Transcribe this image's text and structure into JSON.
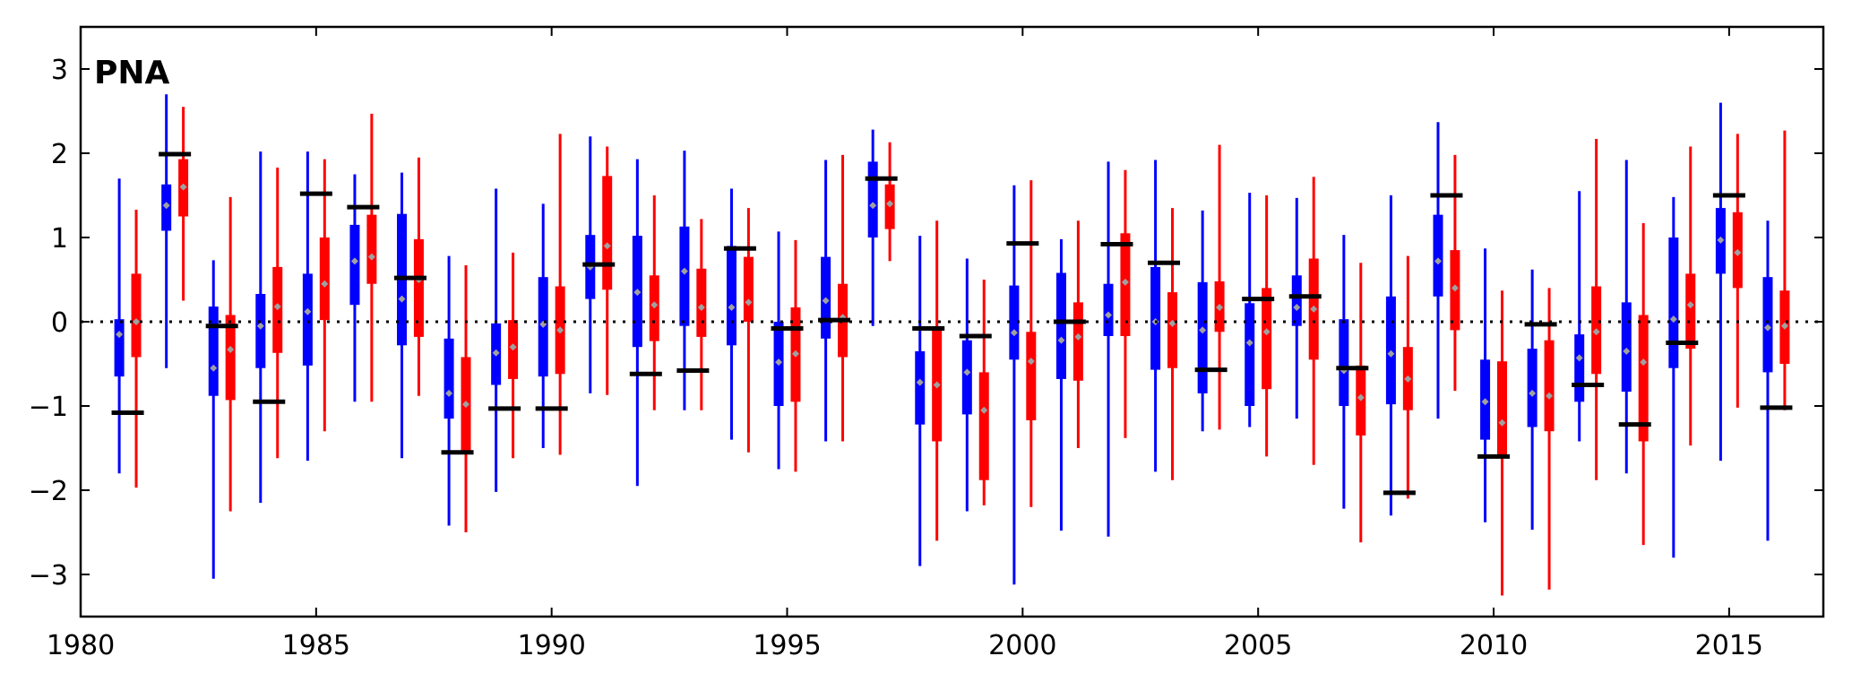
{
  "chart_data": {
    "type": "box",
    "panel_label": "PNA",
    "xlim": [
      1980,
      2017
    ],
    "ylim": [
      -3.5,
      3.5
    ],
    "x_ticks": [
      1980,
      1985,
      1990,
      1995,
      2000,
      2005,
      2010,
      2015
    ],
    "y_ticks": [
      -3,
      -2,
      -1,
      0,
      1,
      2,
      3
    ],
    "zero_line": 0,
    "grid": false,
    "colors": {
      "series_a": "#0000ff",
      "series_b": "#ff0000",
      "observed": "#000000",
      "mean_marker": "#a0a0a0"
    },
    "series": [
      {
        "color": "#0000ff",
        "offset": -0.18,
        "boxes": [
          {
            "year": 1981,
            "lo": -1.8,
            "q1": -0.65,
            "q3": 0.03,
            "hi": 1.7,
            "mean": -0.15
          },
          {
            "year": 1982,
            "lo": -0.55,
            "q1": 1.08,
            "q3": 1.63,
            "hi": 2.7,
            "mean": 1.38
          },
          {
            "year": 1983,
            "lo": -3.05,
            "q1": -0.88,
            "q3": 0.18,
            "hi": 0.73,
            "mean": -0.55
          },
          {
            "year": 1984,
            "lo": -2.15,
            "q1": -0.55,
            "q3": 0.33,
            "hi": 2.02,
            "mean": -0.05
          },
          {
            "year": 1985,
            "lo": -1.65,
            "q1": -0.52,
            "q3": 0.57,
            "hi": 2.02,
            "mean": 0.12
          },
          {
            "year": 1986,
            "lo": -0.95,
            "q1": 0.2,
            "q3": 1.15,
            "hi": 1.75,
            "mean": 0.72
          },
          {
            "year": 1987,
            "lo": -1.62,
            "q1": -0.28,
            "q3": 1.28,
            "hi": 1.77,
            "mean": 0.27
          },
          {
            "year": 1988,
            "lo": -2.42,
            "q1": -1.15,
            "q3": -0.2,
            "hi": 0.78,
            "mean": -0.85
          },
          {
            "year": 1989,
            "lo": -2.02,
            "q1": -0.75,
            "q3": -0.02,
            "hi": 1.58,
            "mean": -0.37
          },
          {
            "year": 1990,
            "lo": -1.5,
            "q1": -0.65,
            "q3": 0.53,
            "hi": 1.4,
            "mean": -0.03
          },
          {
            "year": 1991,
            "lo": -0.85,
            "q1": 0.27,
            "q3": 1.03,
            "hi": 2.2,
            "mean": 0.65
          },
          {
            "year": 1992,
            "lo": -1.95,
            "q1": -0.3,
            "q3": 1.02,
            "hi": 1.93,
            "mean": 0.35
          },
          {
            "year": 1993,
            "lo": -1.05,
            "q1": -0.05,
            "q3": 1.13,
            "hi": 2.03,
            "mean": 0.6
          },
          {
            "year": 1994,
            "lo": -1.4,
            "q1": -0.28,
            "q3": 0.9,
            "hi": 1.58,
            "mean": 0.17
          },
          {
            "year": 1995,
            "lo": -1.75,
            "q1": -1.0,
            "q3": 0.0,
            "hi": 1.07,
            "mean": -0.48
          },
          {
            "year": 1996,
            "lo": -1.42,
            "q1": -0.2,
            "q3": 0.77,
            "hi": 1.92,
            "mean": 0.25
          },
          {
            "year": 1997,
            "lo": -0.05,
            "q1": 1.0,
            "q3": 1.9,
            "hi": 2.28,
            "mean": 1.38
          },
          {
            "year": 1998,
            "lo": -2.9,
            "q1": -1.22,
            "q3": -0.35,
            "hi": 1.02,
            "mean": -0.72
          },
          {
            "year": 1999,
            "lo": -2.25,
            "q1": -1.1,
            "q3": -0.22,
            "hi": 0.75,
            "mean": -0.6
          },
          {
            "year": 2000,
            "lo": -3.12,
            "q1": -0.45,
            "q3": 0.43,
            "hi": 1.62,
            "mean": -0.13
          },
          {
            "year": 2001,
            "lo": -2.48,
            "q1": -0.68,
            "q3": 0.58,
            "hi": 0.98,
            "mean": -0.22
          },
          {
            "year": 2002,
            "lo": -2.55,
            "q1": -0.17,
            "q3": 0.45,
            "hi": 1.9,
            "mean": 0.08
          },
          {
            "year": 2003,
            "lo": -1.78,
            "q1": -0.57,
            "q3": 0.65,
            "hi": 1.92,
            "mean": 0.0
          },
          {
            "year": 2004,
            "lo": -1.3,
            "q1": -0.85,
            "q3": 0.47,
            "hi": 1.32,
            "mean": -0.1
          },
          {
            "year": 2005,
            "lo": -1.25,
            "q1": -1.0,
            "q3": 0.22,
            "hi": 1.53,
            "mean": -0.25
          },
          {
            "year": 2006,
            "lo": -1.15,
            "q1": -0.05,
            "q3": 0.55,
            "hi": 1.47,
            "mean": 0.17
          },
          {
            "year": 2007,
            "lo": -2.22,
            "q1": -1.0,
            "q3": 0.03,
            "hi": 1.03,
            "mean": -0.58
          },
          {
            "year": 2008,
            "lo": -2.3,
            "q1": -0.98,
            "q3": 0.3,
            "hi": 1.5,
            "mean": -0.38
          },
          {
            "year": 2009,
            "lo": -1.15,
            "q1": 0.3,
            "q3": 1.27,
            "hi": 2.37,
            "mean": 0.72
          },
          {
            "year": 2010,
            "lo": -2.38,
            "q1": -1.4,
            "q3": -0.45,
            "hi": 0.87,
            "mean": -0.95
          },
          {
            "year": 2011,
            "lo": -2.47,
            "q1": -1.25,
            "q3": -0.32,
            "hi": 0.62,
            "mean": -0.85
          },
          {
            "year": 2012,
            "lo": -1.42,
            "q1": -0.95,
            "q3": -0.15,
            "hi": 1.55,
            "mean": -0.43
          },
          {
            "year": 2013,
            "lo": -1.8,
            "q1": -0.83,
            "q3": 0.23,
            "hi": 1.92,
            "mean": -0.35
          },
          {
            "year": 2014,
            "lo": -2.8,
            "q1": -0.55,
            "q3": 1.0,
            "hi": 1.48,
            "mean": 0.03
          },
          {
            "year": 2015,
            "lo": -1.65,
            "q1": 0.57,
            "q3": 1.35,
            "hi": 2.6,
            "mean": 0.97
          },
          {
            "year": 2016,
            "lo": -2.6,
            "q1": -0.6,
            "q3": 0.53,
            "hi": 1.2,
            "mean": -0.07
          }
        ]
      },
      {
        "color": "#ff0000",
        "offset": 0.18,
        "boxes": [
          {
            "year": 1981,
            "lo": -1.97,
            "q1": -0.42,
            "q3": 0.57,
            "hi": 1.33,
            "mean": 0.0
          },
          {
            "year": 1982,
            "lo": 0.25,
            "q1": 1.25,
            "q3": 1.93,
            "hi": 2.55,
            "mean": 1.6
          },
          {
            "year": 1983,
            "lo": -2.25,
            "q1": -0.93,
            "q3": 0.08,
            "hi": 1.48,
            "mean": -0.33
          },
          {
            "year": 1984,
            "lo": -1.62,
            "q1": -0.37,
            "q3": 0.65,
            "hi": 1.83,
            "mean": 0.18
          },
          {
            "year": 1985,
            "lo": -1.3,
            "q1": 0.02,
            "q3": 1.0,
            "hi": 1.93,
            "mean": 0.45
          },
          {
            "year": 1986,
            "lo": -0.95,
            "q1": 0.45,
            "q3": 1.27,
            "hi": 2.47,
            "mean": 0.77
          },
          {
            "year": 1987,
            "lo": -0.88,
            "q1": -0.18,
            "q3": 0.98,
            "hi": 1.95,
            "mean": 0.5
          },
          {
            "year": 1988,
            "lo": -2.5,
            "q1": -1.53,
            "q3": -0.42,
            "hi": 0.67,
            "mean": -0.98
          },
          {
            "year": 1989,
            "lo": -1.62,
            "q1": -0.68,
            "q3": 0.02,
            "hi": 0.82,
            "mean": -0.3
          },
          {
            "year": 1990,
            "lo": -1.58,
            "q1": -0.62,
            "q3": 0.42,
            "hi": 2.23,
            "mean": -0.1
          },
          {
            "year": 1991,
            "lo": -0.87,
            "q1": 0.38,
            "q3": 1.73,
            "hi": 2.08,
            "mean": 0.9
          },
          {
            "year": 1992,
            "lo": -1.05,
            "q1": -0.23,
            "q3": 0.55,
            "hi": 1.5,
            "mean": 0.2
          },
          {
            "year": 1993,
            "lo": -1.05,
            "q1": -0.18,
            "q3": 0.63,
            "hi": 1.22,
            "mean": 0.17
          },
          {
            "year": 1994,
            "lo": -1.55,
            "q1": 0.0,
            "q3": 0.77,
            "hi": 1.35,
            "mean": 0.23
          },
          {
            "year": 1995,
            "lo": -1.78,
            "q1": -0.95,
            "q3": 0.17,
            "hi": 0.97,
            "mean": -0.38
          },
          {
            "year": 1996,
            "lo": -1.42,
            "q1": -0.42,
            "q3": 0.45,
            "hi": 1.98,
            "mean": 0.05
          },
          {
            "year": 1997,
            "lo": 0.72,
            "q1": 1.1,
            "q3": 1.63,
            "hi": 2.13,
            "mean": 1.4
          },
          {
            "year": 1998,
            "lo": -2.6,
            "q1": -1.42,
            "q3": -0.1,
            "hi": 1.2,
            "mean": -0.75
          },
          {
            "year": 1999,
            "lo": -2.18,
            "q1": -1.88,
            "q3": -0.6,
            "hi": 0.5,
            "mean": -1.05
          },
          {
            "year": 2000,
            "lo": -2.2,
            "q1": -1.17,
            "q3": -0.12,
            "hi": 1.68,
            "mean": -0.47
          },
          {
            "year": 2001,
            "lo": -1.5,
            "q1": -0.7,
            "q3": 0.23,
            "hi": 1.2,
            "mean": -0.18
          },
          {
            "year": 2002,
            "lo": -1.38,
            "q1": -0.17,
            "q3": 1.05,
            "hi": 1.8,
            "mean": 0.47
          },
          {
            "year": 2003,
            "lo": -1.88,
            "q1": -0.55,
            "q3": 0.35,
            "hi": 1.35,
            "mean": -0.02
          },
          {
            "year": 2004,
            "lo": -1.28,
            "q1": -0.12,
            "q3": 0.48,
            "hi": 2.1,
            "mean": 0.17
          },
          {
            "year": 2005,
            "lo": -1.6,
            "q1": -0.8,
            "q3": 0.4,
            "hi": 1.5,
            "mean": -0.12
          },
          {
            "year": 2006,
            "lo": -1.7,
            "q1": -0.45,
            "q3": 0.75,
            "hi": 1.72,
            "mean": 0.15
          },
          {
            "year": 2007,
            "lo": -2.62,
            "q1": -1.35,
            "q3": -0.52,
            "hi": 0.7,
            "mean": -0.9
          },
          {
            "year": 2008,
            "lo": -2.1,
            "q1": -1.05,
            "q3": -0.3,
            "hi": 0.78,
            "mean": -0.68
          },
          {
            "year": 2009,
            "lo": -0.82,
            "q1": -0.1,
            "q3": 0.85,
            "hi": 1.98,
            "mean": 0.4
          },
          {
            "year": 2010,
            "lo": -3.25,
            "q1": -1.58,
            "q3": -0.47,
            "hi": 0.37,
            "mean": -1.2
          },
          {
            "year": 2011,
            "lo": -3.18,
            "q1": -1.3,
            "q3": -0.22,
            "hi": 0.4,
            "mean": -0.88
          },
          {
            "year": 2012,
            "lo": -1.88,
            "q1": -0.62,
            "q3": 0.42,
            "hi": 2.17,
            "mean": -0.12
          },
          {
            "year": 2013,
            "lo": -2.65,
            "q1": -1.42,
            "q3": 0.08,
            "hi": 1.17,
            "mean": -0.48
          },
          {
            "year": 2014,
            "lo": -1.47,
            "q1": -0.32,
            "q3": 0.57,
            "hi": 2.08,
            "mean": 0.2
          },
          {
            "year": 2015,
            "lo": -1.02,
            "q1": 0.4,
            "q3": 1.3,
            "hi": 2.23,
            "mean": 0.82
          },
          {
            "year": 2016,
            "lo": -1.05,
            "q1": -0.5,
            "q3": 0.37,
            "hi": 2.27,
            "mean": -0.05
          }
        ]
      }
    ],
    "observed": [
      {
        "year": 1981,
        "value": -1.08
      },
      {
        "year": 1982,
        "value": 1.99
      },
      {
        "year": 1983,
        "value": -0.05
      },
      {
        "year": 1984,
        "value": -0.95
      },
      {
        "year": 1985,
        "value": 1.52
      },
      {
        "year": 1986,
        "value": 1.36
      },
      {
        "year": 1987,
        "value": 0.52
      },
      {
        "year": 1988,
        "value": -1.55
      },
      {
        "year": 1989,
        "value": -1.03
      },
      {
        "year": 1990,
        "value": -1.03
      },
      {
        "year": 1991,
        "value": 0.68
      },
      {
        "year": 1992,
        "value": -0.62
      },
      {
        "year": 1993,
        "value": -0.58
      },
      {
        "year": 1994,
        "value": 0.87
      },
      {
        "year": 1995,
        "value": -0.08
      },
      {
        "year": 1996,
        "value": 0.02
      },
      {
        "year": 1997,
        "value": 1.7
      },
      {
        "year": 1998,
        "value": -0.08
      },
      {
        "year": 1999,
        "value": -0.17
      },
      {
        "year": 2000,
        "value": 0.93
      },
      {
        "year": 2001,
        "value": 0.0
      },
      {
        "year": 2002,
        "value": 0.92
      },
      {
        "year": 2003,
        "value": 0.7
      },
      {
        "year": 2004,
        "value": -0.57
      },
      {
        "year": 2005,
        "value": 0.27
      },
      {
        "year": 2006,
        "value": 0.3
      },
      {
        "year": 2007,
        "value": -0.55
      },
      {
        "year": 2008,
        "value": -2.03
      },
      {
        "year": 2009,
        "value": 1.5
      },
      {
        "year": 2010,
        "value": -1.6
      },
      {
        "year": 2011,
        "value": -0.03
      },
      {
        "year": 2012,
        "value": -0.75
      },
      {
        "year": 2013,
        "value": -1.22
      },
      {
        "year": 2014,
        "value": -0.25
      },
      {
        "year": 2015,
        "value": 1.5
      },
      {
        "year": 2016,
        "value": -1.02
      }
    ]
  }
}
